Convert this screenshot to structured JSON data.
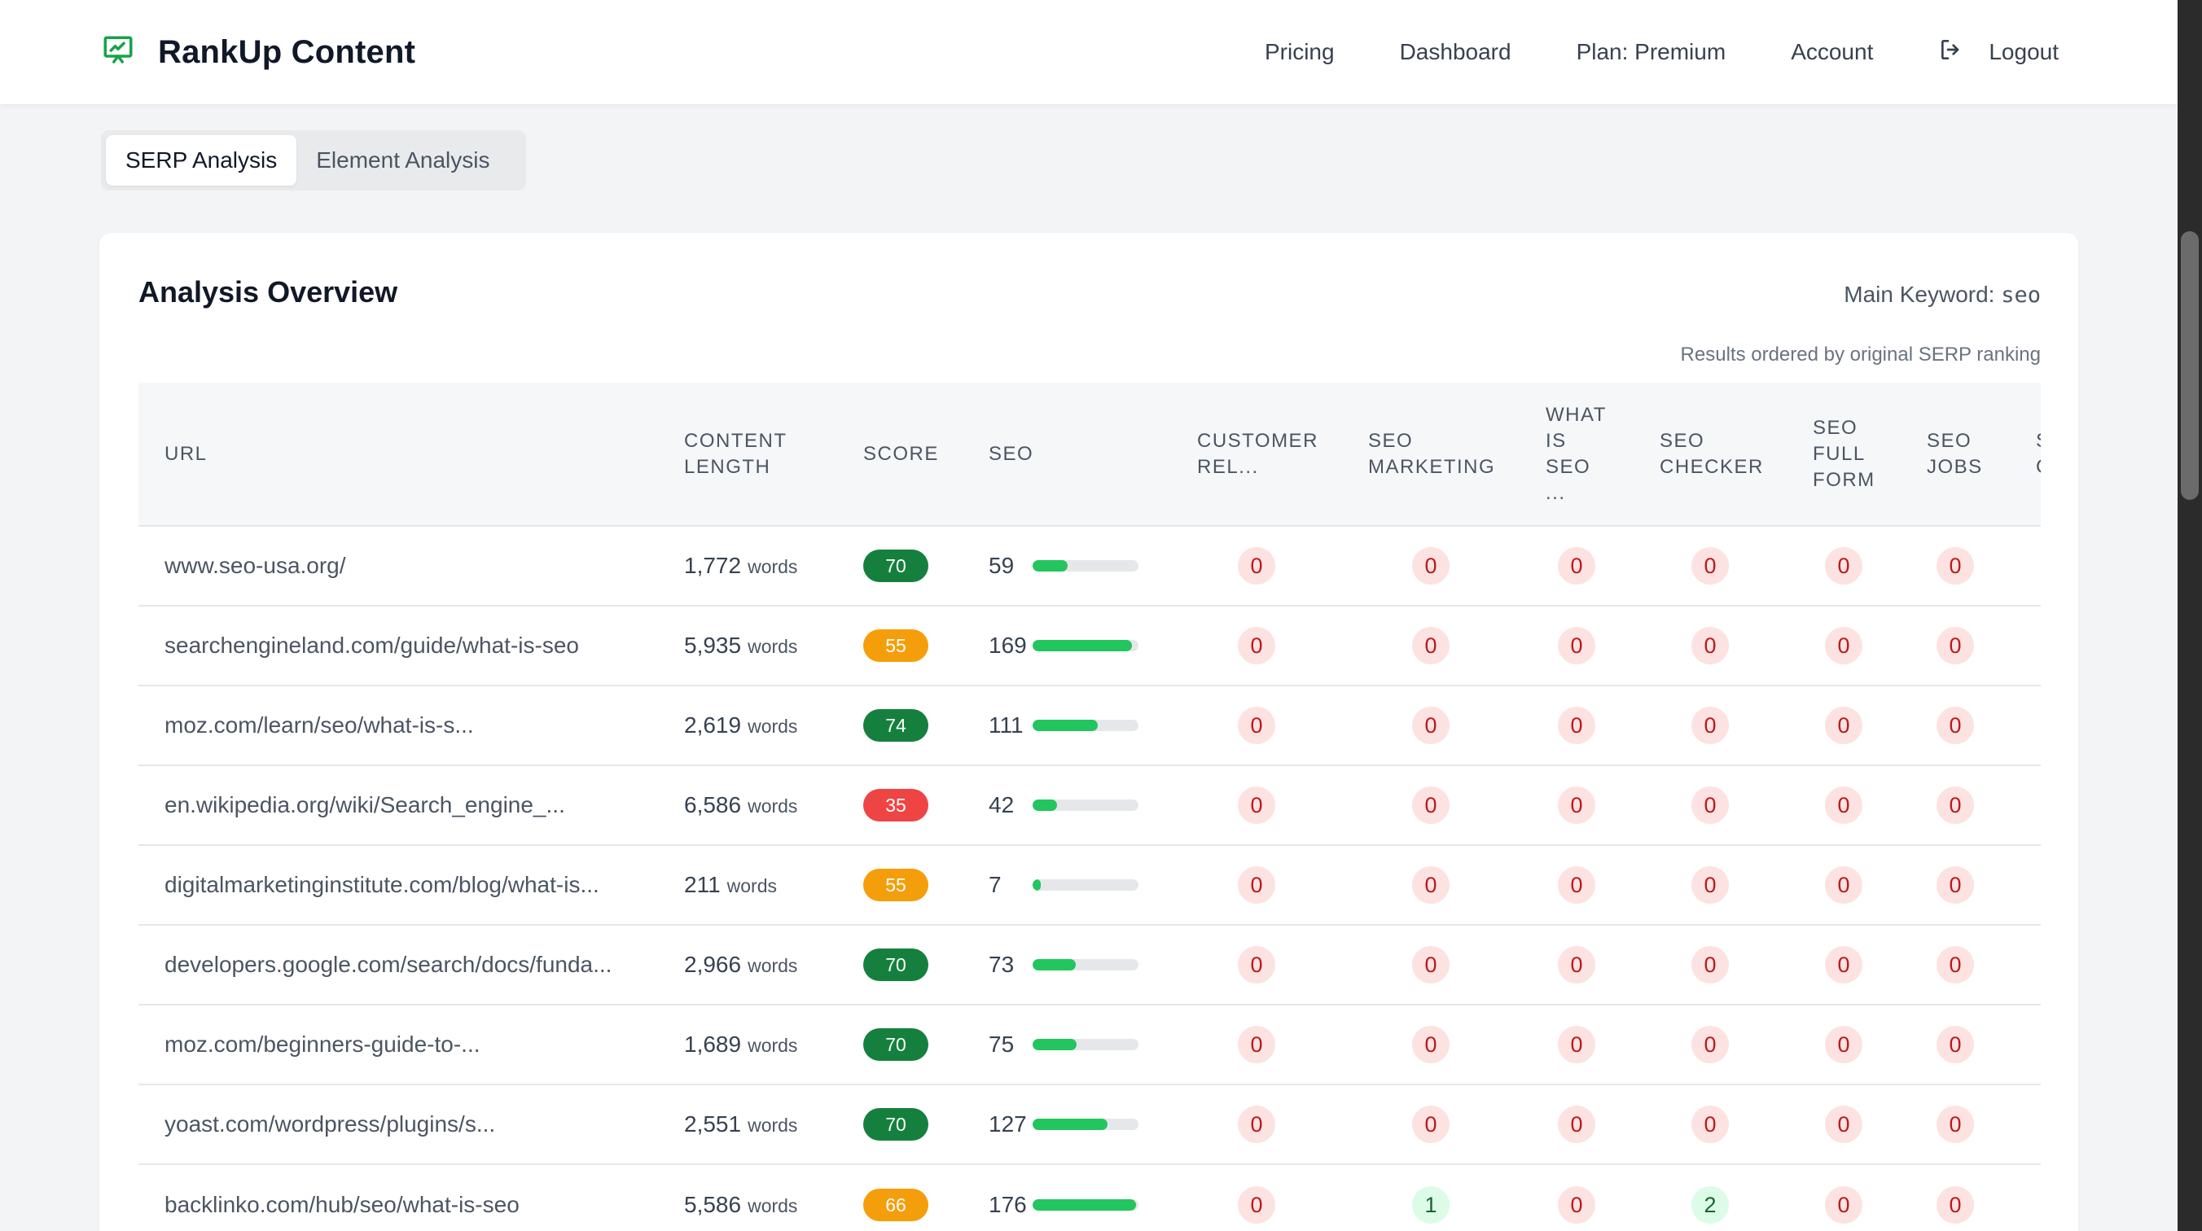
{
  "header": {
    "brand": "RankUp Content",
    "brand_icon": "presentation-chart-icon",
    "accent": "#16a34a",
    "nav": [
      {
        "label": "Pricing"
      },
      {
        "label": "Dashboard"
      },
      {
        "label": "Plan: Premium"
      },
      {
        "label": "Account"
      },
      {
        "label": "Logout",
        "icon": "logout-icon"
      }
    ]
  },
  "tabs": [
    {
      "label": "SERP Analysis",
      "active": true
    },
    {
      "label": "Element Analysis",
      "active": false
    }
  ],
  "overview": {
    "title": "Analysis Overview",
    "main_keyword_label": "Main Keyword:",
    "main_keyword": "seo",
    "order_note": "Results ordered by original SERP ranking"
  },
  "table": {
    "columns": [
      {
        "label": "URL"
      },
      {
        "label": "CONTENT LENGTH"
      },
      {
        "label": "SCORE"
      },
      {
        "label": "SEO"
      },
      {
        "label": "CUSTOMER REL..."
      },
      {
        "label": "SEO MARKETING"
      },
      {
        "label": "WHAT IS SEO ..."
      },
      {
        "label": "SEO CHECKER"
      },
      {
        "label": "SEO FULL FORM"
      },
      {
        "label": "SEO JOBS"
      },
      {
        "label": "S C"
      }
    ],
    "words_unit": "words",
    "score_colors": {
      "green": "#15803d",
      "orange": "#f59e0b",
      "red": "#ef4444"
    },
    "seo_max": 180,
    "rows": [
      {
        "url": "www.seo-usa.org/",
        "length": "1,772",
        "score": "70",
        "score_color": "green",
        "seo": "59",
        "kw": [
          "0",
          "0",
          "0",
          "0",
          "0",
          "0"
        ]
      },
      {
        "url": "searchengineland.com/guide/what-is-seo",
        "length": "5,935",
        "score": "55",
        "score_color": "orange",
        "seo": "169",
        "kw": [
          "0",
          "0",
          "0",
          "0",
          "0",
          "0"
        ]
      },
      {
        "url": "moz.com/learn/seo/what-is-s...",
        "length": "2,619",
        "score": "74",
        "score_color": "green",
        "seo": "111",
        "kw": [
          "0",
          "0",
          "0",
          "0",
          "0",
          "0"
        ]
      },
      {
        "url": "en.wikipedia.org/wiki/Search_engine_...",
        "length": "6,586",
        "score": "35",
        "score_color": "red",
        "seo": "42",
        "kw": [
          "0",
          "0",
          "0",
          "0",
          "0",
          "0"
        ]
      },
      {
        "url": "digitalmarketinginstitute.com/blog/what-is...",
        "length": "211",
        "score": "55",
        "score_color": "orange",
        "seo": "7",
        "kw": [
          "0",
          "0",
          "0",
          "0",
          "0",
          "0"
        ]
      },
      {
        "url": "developers.google.com/search/docs/funda...",
        "length": "2,966",
        "score": "70",
        "score_color": "green",
        "seo": "73",
        "kw": [
          "0",
          "0",
          "0",
          "0",
          "0",
          "0"
        ]
      },
      {
        "url": "moz.com/beginners-guide-to-...",
        "length": "1,689",
        "score": "70",
        "score_color": "green",
        "seo": "75",
        "kw": [
          "0",
          "0",
          "0",
          "0",
          "0",
          "0"
        ]
      },
      {
        "url": "yoast.com/wordpress/plugins/s...",
        "length": "2,551",
        "score": "70",
        "score_color": "green",
        "seo": "127",
        "kw": [
          "0",
          "0",
          "0",
          "0",
          "0",
          "0"
        ]
      },
      {
        "url": "backlinko.com/hub/seo/what-is-seo",
        "length": "5,586",
        "score": "66",
        "score_color": "orange",
        "seo": "176",
        "kw": [
          "0",
          "1",
          "0",
          "2",
          "0",
          "0"
        ]
      }
    ]
  }
}
